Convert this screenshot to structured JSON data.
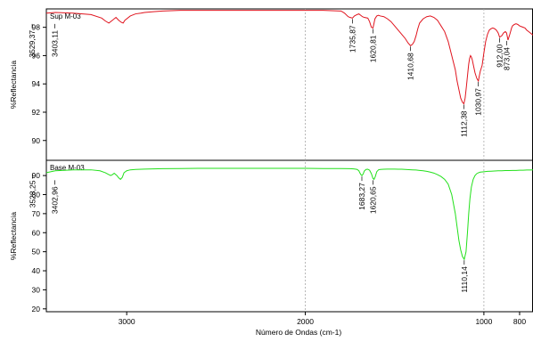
{
  "chart_data": [
    {
      "type": "line",
      "panel_name": "Sup M-03",
      "ylabel": "%Reflectancia",
      "xlim": [
        3450,
        725
      ],
      "ylim": [
        88.6,
        99.3
      ],
      "y_ticks": [
        90,
        92,
        94,
        96,
        98
      ],
      "series": [
        {
          "name": "Sup M-03",
          "color": "#e0141e",
          "x": [
            3450,
            3400,
            3300,
            3200,
            3140,
            3120,
            3100,
            3080,
            3060,
            3045,
            3030,
            3020,
            3010,
            2980,
            2950,
            2920,
            2900,
            2850,
            2800,
            2700,
            2600,
            2500,
            2400,
            2300,
            2200,
            2100,
            2000,
            1900,
            1800,
            1780,
            1760,
            1750,
            1736,
            1725,
            1710,
            1700,
            1690,
            1680,
            1670,
            1650,
            1640,
            1630,
            1621,
            1615,
            1610,
            1600,
            1590,
            1580,
            1560,
            1540,
            1520,
            1500,
            1480,
            1460,
            1440,
            1425,
            1411,
            1400,
            1390,
            1380,
            1370,
            1360,
            1340,
            1320,
            1300,
            1280,
            1260,
            1250,
            1240,
            1220,
            1200,
            1180,
            1160,
            1150,
            1140,
            1130,
            1120,
            1112,
            1105,
            1098,
            1090,
            1085,
            1080,
            1075,
            1070,
            1065,
            1060,
            1055,
            1050,
            1040,
            1031,
            1025,
            1020,
            1010,
            1000,
            990,
            980,
            970,
            960,
            950,
            940,
            930,
            920,
            912,
            900,
            890,
            880,
            873,
            865,
            855,
            845,
            840,
            830,
            820,
            810,
            800,
            790,
            780,
            770,
            760,
            750,
            740,
            730,
            725
          ],
          "y": [
            99.0,
            99.05,
            99.0,
            98.9,
            98.65,
            98.45,
            98.3,
            98.5,
            98.7,
            98.5,
            98.35,
            98.3,
            98.5,
            98.8,
            98.95,
            99.0,
            99.05,
            99.1,
            99.15,
            99.2,
            99.2,
            99.2,
            99.2,
            99.2,
            99.2,
            99.2,
            99.2,
            99.2,
            99.15,
            99.0,
            98.75,
            98.7,
            98.65,
            98.8,
            98.9,
            98.95,
            98.85,
            98.75,
            98.7,
            98.65,
            98.4,
            98.0,
            97.95,
            98.3,
            98.6,
            98.8,
            98.85,
            98.8,
            98.75,
            98.6,
            98.4,
            98.1,
            97.8,
            97.5,
            97.2,
            96.9,
            96.7,
            96.8,
            97.0,
            97.4,
            97.9,
            98.3,
            98.6,
            98.75,
            98.8,
            98.7,
            98.5,
            98.3,
            98.1,
            97.7,
            97.0,
            96.0,
            95.0,
            94.2,
            93.6,
            93.0,
            92.7,
            92.6,
            93.0,
            93.8,
            94.8,
            95.4,
            95.8,
            96.0,
            95.9,
            95.7,
            95.4,
            95.1,
            94.8,
            94.4,
            94.2,
            94.6,
            94.9,
            95.3,
            96.2,
            97.0,
            97.5,
            97.8,
            97.9,
            97.95,
            97.9,
            97.8,
            97.6,
            97.3,
            97.4,
            97.6,
            97.7,
            97.6,
            97.1,
            97.5,
            97.95,
            98.1,
            98.2,
            98.25,
            98.2,
            98.1,
            98.05,
            98.0,
            97.95,
            97.8,
            97.7,
            97.6,
            97.5,
            97.45
          ]
        }
      ],
      "annotations": [
        {
          "label": "3529,37",
          "x": 3529.37,
          "y": 98.3
        },
        {
          "label": "3403,11",
          "x": 3403.11,
          "y": 98.3
        },
        {
          "label": "1735,87",
          "x": 1735.87,
          "y": 98.65
        },
        {
          "label": "1620,81",
          "x": 1620.81,
          "y": 97.95
        },
        {
          "label": "1410,68",
          "x": 1410.68,
          "y": 96.7
        },
        {
          "label": "1112,38",
          "x": 1112.38,
          "y": 92.6
        },
        {
          "label": "1030,97",
          "x": 1030.97,
          "y": 94.2
        },
        {
          "label": "912,00",
          "x": 912.0,
          "y": 97.3
        },
        {
          "label": "873,04",
          "x": 873.04,
          "y": 97.1
        }
      ]
    },
    {
      "type": "line",
      "panel_name": "Base M-03",
      "xlabel": "Número de Ondas (cm-1)",
      "ylabel": "%Reflectancia",
      "xlim": [
        3450,
        725
      ],
      "ylim": [
        18.5,
        98.0
      ],
      "y_ticks": [
        20,
        30,
        40,
        50,
        60,
        70,
        80,
        90
      ],
      "x_ticks": [
        3000,
        2000,
        1000,
        800
      ],
      "series": [
        {
          "name": "Base M-03",
          "color": "#22e01a",
          "x": [
            3450,
            3400,
            3300,
            3200,
            3150,
            3120,
            3100,
            3090,
            3080,
            3070,
            3055,
            3045,
            3035,
            3025,
            3015,
            3000,
            2980,
            2950,
            2900,
            2800,
            2700,
            2600,
            2500,
            2400,
            2300,
            2200,
            2100,
            2000,
            1900,
            1800,
            1750,
            1730,
            1720,
            1710,
            1700,
            1695,
            1689,
            1683,
            1676,
            1670,
            1660,
            1650,
            1640,
            1630,
            1621,
            1615,
            1608,
            1600,
            1590,
            1580,
            1560,
            1540,
            1520,
            1500,
            1480,
            1460,
            1440,
            1420,
            1400,
            1380,
            1360,
            1340,
            1320,
            1300,
            1280,
            1260,
            1240,
            1220,
            1200,
            1180,
            1160,
            1150,
            1140,
            1130,
            1120,
            1110,
            1100,
            1092,
            1085,
            1078,
            1070,
            1060,
            1050,
            1040,
            1030,
            1020,
            1000,
            980,
            960,
            940,
            920,
            900,
            880,
            860,
            840,
            820,
            800,
            780,
            760,
            740,
            725
          ],
          "y": [
            91.5,
            92.5,
            93.0,
            93.0,
            92.5,
            91.5,
            90.5,
            90.0,
            90.5,
            91.2,
            90.0,
            88.8,
            88.0,
            89.0,
            91.5,
            92.5,
            93.0,
            93.2,
            93.4,
            93.6,
            93.7,
            93.8,
            93.8,
            93.8,
            93.8,
            93.8,
            93.8,
            93.8,
            93.7,
            93.7,
            93.6,
            93.5,
            93.4,
            93.2,
            92.5,
            91.5,
            90.5,
            90.0,
            90.8,
            92.3,
            93.2,
            93.3,
            92.8,
            91.0,
            88.5,
            88.0,
            89.5,
            92.0,
            93.0,
            93.2,
            93.3,
            93.4,
            93.4,
            93.4,
            93.3,
            93.3,
            93.2,
            93.1,
            93.0,
            92.9,
            92.7,
            92.5,
            92.2,
            91.8,
            91.3,
            90.5,
            89.5,
            88.0,
            85.5,
            80.0,
            70.0,
            63.0,
            56.0,
            51.0,
            47.5,
            46.0,
            50.0,
            60.0,
            70.0,
            78.0,
            84.0,
            88.0,
            90.0,
            91.0,
            91.5,
            91.8,
            92.0,
            92.2,
            92.3,
            92.4,
            92.5,
            92.5,
            92.6,
            92.6,
            92.7,
            92.7,
            92.8,
            92.8,
            92.9,
            92.9,
            93.0
          ]
        }
      ],
      "annotations": [
        {
          "label": "3528,25",
          "x": 3528.25,
          "y": 91.2
        },
        {
          "label": "3402,96",
          "x": 3402.96,
          "y": 88.0
        },
        {
          "label": "1683,27",
          "x": 1683.27,
          "y": 90.0
        },
        {
          "label": "1620,65",
          "x": 1620.65,
          "y": 88.0
        },
        {
          "label": "1110,14",
          "x": 1110.14,
          "y": 46.0
        }
      ]
    }
  ]
}
